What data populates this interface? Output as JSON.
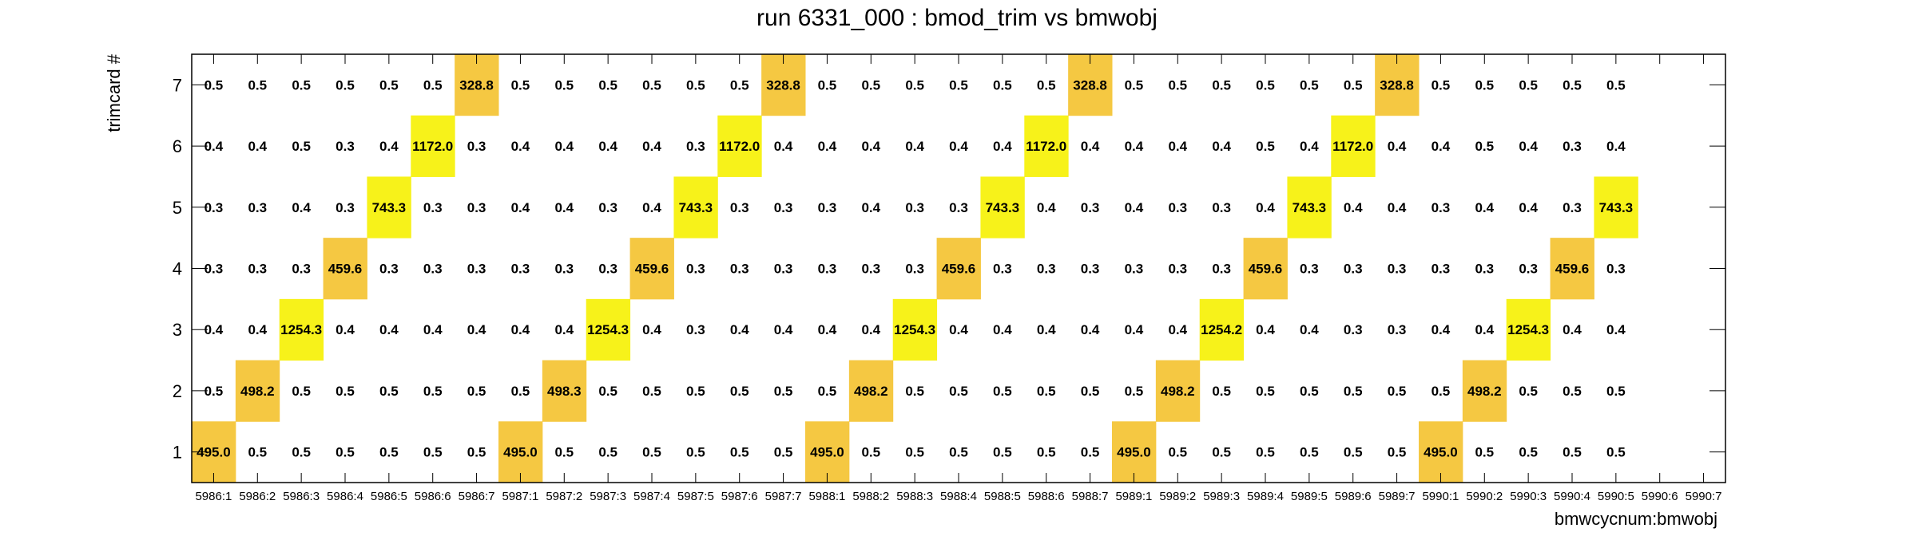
{
  "chart_data": {
    "type": "heatmap",
    "title": "run 6331_000 : bmod_trim vs bmwobj",
    "xlabel": "bmwcycnum:bmwobj",
    "ylabel": "trimcard #",
    "x_categories": [
      "5986:1",
      "5986:2",
      "5986:3",
      "5986:4",
      "5986:5",
      "5986:6",
      "5986:7",
      "5987:1",
      "5987:2",
      "5987:3",
      "5987:4",
      "5987:5",
      "5987:6",
      "5987:7",
      "5988:1",
      "5988:2",
      "5988:3",
      "5988:4",
      "5988:5",
      "5988:6",
      "5988:7",
      "5989:1",
      "5989:2",
      "5989:3",
      "5989:4",
      "5989:5",
      "5989:6",
      "5989:7",
      "5990:1",
      "5990:2",
      "5990:3",
      "5990:4",
      "5990:5",
      "5990:6",
      "5990:7"
    ],
    "y_categories": [
      "1",
      "2",
      "3",
      "4",
      "5",
      "6",
      "7"
    ],
    "grid": false,
    "colors": {
      "low": "#f5c842",
      "high": "#f7f21a"
    },
    "values": {
      "1": [
        "495.0",
        "0.5",
        "0.5",
        "0.5",
        "0.5",
        "0.5",
        "0.5",
        "495.0",
        "0.5",
        "0.5",
        "0.5",
        "0.5",
        "0.5",
        "0.5",
        "495.0",
        "0.5",
        "0.5",
        "0.5",
        "0.5",
        "0.5",
        "0.5",
        "495.0",
        "0.5",
        "0.5",
        "0.5",
        "0.5",
        "0.5",
        "0.5",
        "495.0",
        "0.5",
        "0.5",
        "0.5",
        "0.5",
        "",
        ""
      ],
      "2": [
        "0.5",
        "498.2",
        "0.5",
        "0.5",
        "0.5",
        "0.5",
        "0.5",
        "0.5",
        "498.3",
        "0.5",
        "0.5",
        "0.5",
        "0.5",
        "0.5",
        "0.5",
        "498.2",
        "0.5",
        "0.5",
        "0.5",
        "0.5",
        "0.5",
        "0.5",
        "498.2",
        "0.5",
        "0.5",
        "0.5",
        "0.5",
        "0.5",
        "0.5",
        "498.2",
        "0.5",
        "0.5",
        "0.5",
        "",
        ""
      ],
      "3": [
        "0.4",
        "0.4",
        "1254.3",
        "0.4",
        "0.4",
        "0.4",
        "0.4",
        "0.4",
        "0.4",
        "1254.3",
        "0.4",
        "0.3",
        "0.4",
        "0.4",
        "0.4",
        "0.4",
        "1254.3",
        "0.4",
        "0.4",
        "0.4",
        "0.4",
        "0.4",
        "0.4",
        "1254.2",
        "0.4",
        "0.4",
        "0.3",
        "0.3",
        "0.4",
        "0.4",
        "1254.3",
        "0.4",
        "0.4",
        "",
        ""
      ],
      "4": [
        "0.3",
        "0.3",
        "0.3",
        "459.6",
        "0.3",
        "0.3",
        "0.3",
        "0.3",
        "0.3",
        "0.3",
        "459.6",
        "0.3",
        "0.3",
        "0.3",
        "0.3",
        "0.3",
        "0.3",
        "459.6",
        "0.3",
        "0.3",
        "0.3",
        "0.3",
        "0.3",
        "0.3",
        "459.6",
        "0.3",
        "0.3",
        "0.3",
        "0.3",
        "0.3",
        "0.3",
        "459.6",
        "0.3",
        "",
        ""
      ],
      "5": [
        "0.3",
        "0.3",
        "0.4",
        "0.3",
        "743.3",
        "0.3",
        "0.3",
        "0.4",
        "0.4",
        "0.3",
        "0.4",
        "743.3",
        "0.3",
        "0.3",
        "0.3",
        "0.4",
        "0.3",
        "0.3",
        "743.3",
        "0.4",
        "0.3",
        "0.4",
        "0.3",
        "0.3",
        "0.4",
        "743.3",
        "0.4",
        "0.4",
        "0.3",
        "0.4",
        "0.4",
        "0.3",
        "743.3",
        "",
        ""
      ],
      "6": [
        "0.4",
        "0.4",
        "0.5",
        "0.3",
        "0.4",
        "1172.0",
        "0.3",
        "0.4",
        "0.4",
        "0.4",
        "0.4",
        "0.3",
        "1172.0",
        "0.4",
        "0.4",
        "0.4",
        "0.4",
        "0.4",
        "0.4",
        "1172.0",
        "0.4",
        "0.4",
        "0.4",
        "0.4",
        "0.5",
        "0.4",
        "1172.0",
        "0.4",
        "0.4",
        "0.5",
        "0.4",
        "0.3",
        "0.4",
        "",
        ""
      ],
      "7": [
        "0.5",
        "0.5",
        "0.5",
        "0.5",
        "0.5",
        "0.5",
        "328.8",
        "0.5",
        "0.5",
        "0.5",
        "0.5",
        "0.5",
        "0.5",
        "328.8",
        "0.5",
        "0.5",
        "0.5",
        "0.5",
        "0.5",
        "0.5",
        "328.8",
        "0.5",
        "0.5",
        "0.5",
        "0.5",
        "0.5",
        "0.5",
        "328.8",
        "0.5",
        "0.5",
        "0.5",
        "0.5",
        "0.5",
        "",
        ""
      ]
    }
  }
}
